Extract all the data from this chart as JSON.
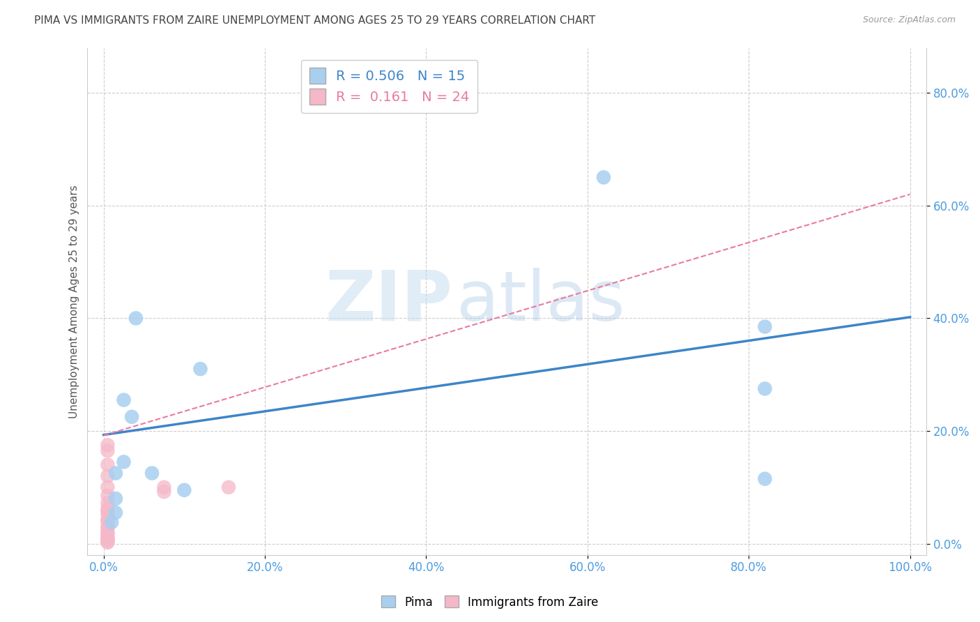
{
  "title": "PIMA VS IMMIGRANTS FROM ZAIRE UNEMPLOYMENT AMONG AGES 25 TO 29 YEARS CORRELATION CHART",
  "source_text": "Source: ZipAtlas.com",
  "ylabel": "Unemployment Among Ages 25 to 29 years",
  "xlim": [
    -0.02,
    1.02
  ],
  "ylim": [
    -0.02,
    0.88
  ],
  "xticks": [
    0.0,
    0.2,
    0.4,
    0.6,
    0.8,
    1.0
  ],
  "yticks": [
    0.0,
    0.2,
    0.4,
    0.6,
    0.8
  ],
  "pima_color": "#a8cff0",
  "zaire_color": "#f5b8c8",
  "pima_R": 0.506,
  "pima_N": 15,
  "zaire_R": 0.161,
  "zaire_N": 24,
  "pima_line_color": "#3d85c8",
  "zaire_line_color": "#e87aa0",
  "grid_color": "#cccccc",
  "background_color": "#ffffff",
  "tick_label_color": "#4d9de0",
  "pima_scatter_x": [
    0.62,
    0.04,
    0.12,
    0.025,
    0.035,
    0.025,
    0.015,
    0.015,
    0.82,
    0.82,
    0.82,
    0.015,
    0.01,
    0.06,
    0.1
  ],
  "pima_scatter_y": [
    0.65,
    0.4,
    0.31,
    0.255,
    0.225,
    0.145,
    0.125,
    0.08,
    0.385,
    0.275,
    0.115,
    0.055,
    0.038,
    0.125,
    0.095
  ],
  "zaire_scatter_x": [
    0.005,
    0.005,
    0.005,
    0.005,
    0.005,
    0.005,
    0.005,
    0.005,
    0.005,
    0.005,
    0.005,
    0.005,
    0.005,
    0.005,
    0.005,
    0.005,
    0.005,
    0.005,
    0.005,
    0.005,
    0.005,
    0.075,
    0.075,
    0.155
  ],
  "zaire_scatter_y": [
    0.175,
    0.165,
    0.14,
    0.12,
    0.1,
    0.085,
    0.072,
    0.062,
    0.058,
    0.052,
    0.042,
    0.04,
    0.03,
    0.028,
    0.02,
    0.018,
    0.012,
    0.01,
    0.006,
    0.004,
    0.002,
    0.1,
    0.092,
    0.1
  ],
  "pima_line_x0": 0.0,
  "pima_line_x1": 1.0,
  "pima_line_y0": 0.193,
  "pima_line_y1": 0.402,
  "zaire_line_x0": 0.0,
  "zaire_line_x1": 1.0,
  "zaire_line_y0": 0.192,
  "zaire_line_y1": 0.62,
  "watermark_zip": "ZIP",
  "watermark_atlas": "atlas",
  "title_fontsize": 11,
  "label_fontsize": 11,
  "tick_fontsize": 12,
  "legend_fontsize": 14
}
